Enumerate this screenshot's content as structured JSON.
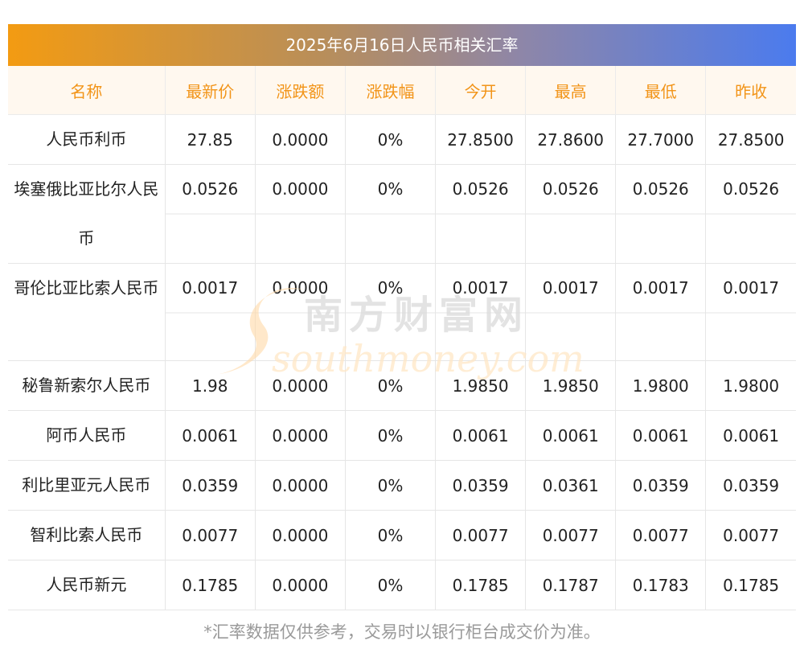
{
  "title": "2025年6月16日人民币相关汇率",
  "headers": [
    "名称",
    "最新价",
    "涨跌额",
    "涨跌幅",
    "今开",
    "最高",
    "最低",
    "昨收"
  ],
  "rows": [
    {
      "name": "人民币利币",
      "latest": "27.85",
      "change": "0.0000",
      "pct": "0%",
      "open": "27.8500",
      "high": "27.8600",
      "low": "27.7000",
      "prev": "27.8500"
    },
    {
      "name": "埃塞俄比亚比尔人民币",
      "latest": "0.0526",
      "change": "0.0000",
      "pct": "0%",
      "open": "0.0526",
      "high": "0.0526",
      "low": "0.0526",
      "prev": "0.0526"
    },
    {
      "name": "哥伦比亚比索人民币",
      "latest": "0.0017",
      "change": "0.0000",
      "pct": "0%",
      "open": "0.0017",
      "high": "0.0017",
      "low": "0.0017",
      "prev": "0.0017"
    },
    {
      "name": "秘鲁新索尔人民币",
      "latest": "1.98",
      "change": "0.0000",
      "pct": "0%",
      "open": "1.9850",
      "high": "1.9850",
      "low": "1.9800",
      "prev": "1.9800"
    },
    {
      "name": "阿币人民币",
      "latest": "0.0061",
      "change": "0.0000",
      "pct": "0%",
      "open": "0.0061",
      "high": "0.0061",
      "low": "0.0061",
      "prev": "0.0061"
    },
    {
      "name": "利比里亚元人民币",
      "latest": "0.0359",
      "change": "0.0000",
      "pct": "0%",
      "open": "0.0359",
      "high": "0.0361",
      "low": "0.0359",
      "prev": "0.0359"
    },
    {
      "name": "智利比索人民币",
      "latest": "0.0077",
      "change": "0.0000",
      "pct": "0%",
      "open": "0.0077",
      "high": "0.0077",
      "low": "0.0077",
      "prev": "0.0077"
    },
    {
      "name": "人民币新元",
      "latest": "0.1785",
      "change": "0.0000",
      "pct": "0%",
      "open": "0.1785",
      "high": "0.1787",
      "low": "0.1783",
      "prev": "0.1785"
    }
  ],
  "footnote": "*汇率数据仅供参考，交易时以银行柜台成交价为准。",
  "watermark": {
    "cn": "南方财富网",
    "en": "southmoney.com"
  },
  "colors": {
    "header_text": "#f29418",
    "header_bg": "#fff8ef",
    "banner_start": "#f39b12",
    "banner_end": "#4b7bee"
  }
}
